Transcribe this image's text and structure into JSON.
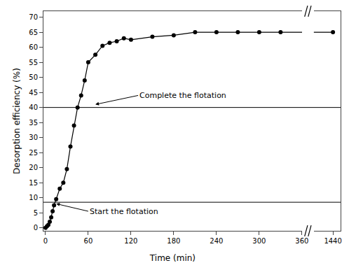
{
  "chart_data": {
    "type": "line",
    "x": [
      0,
      2,
      4,
      6,
      8,
      10,
      12,
      15,
      20,
      25,
      30,
      35,
      40,
      45,
      50,
      55,
      60,
      70,
      80,
      90,
      100,
      110,
      120,
      150,
      180,
      210,
      240,
      270,
      300,
      330,
      1440
    ],
    "values": [
      0,
      0.5,
      1.0,
      2.0,
      3.5,
      5.5,
      7.5,
      9.5,
      13.0,
      15.0,
      19.5,
      27.0,
      34.0,
      40.0,
      44.0,
      49.0,
      55.0,
      57.5,
      60.5,
      61.5,
      62.0,
      63.0,
      62.5,
      63.5,
      64.0,
      65.0,
      65.0,
      65.0,
      65.0,
      65.0,
      65.0
    ],
    "color": "#000000",
    "marker": "circle",
    "xlabel": "Time (min)",
    "ylabel": "Desorption efficiency (%)",
    "xlim": [
      [
        -2.88,
        360
      ],
      [
        1415,
        1450
      ]
    ],
    "xticks": [
      0,
      60,
      120,
      180,
      240,
      300,
      360,
      1440
    ],
    "ylim": [
      -1,
      72
    ],
    "yticks": [
      0,
      5,
      10,
      15,
      20,
      25,
      30,
      35,
      40,
      45,
      50,
      55,
      60,
      65,
      70
    ],
    "hlines": [
      8.5,
      40.0
    ],
    "annotations": [
      {
        "text": "Start the flotation",
        "x": 15,
        "y": 8.0,
        "text_x": 60,
        "text_y": 5.5
      },
      {
        "text": "Complete the flotation",
        "x": 70,
        "y": 41.0,
        "text_x": 130,
        "text_y": 44
      }
    ],
    "grid": false
  }
}
